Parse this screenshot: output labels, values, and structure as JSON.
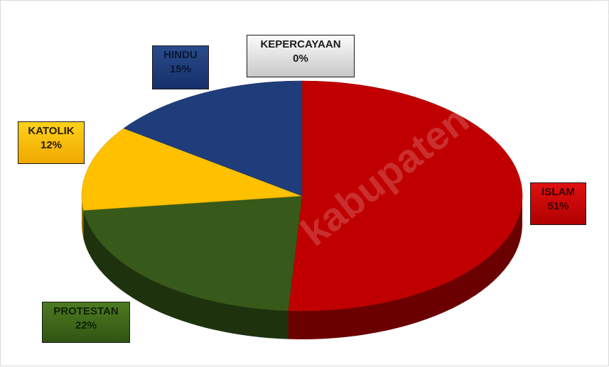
{
  "chart_data": {
    "type": "pie",
    "categories": [
      "ISLAM",
      "PROTESTAN",
      "KATOLIK",
      "HINDU",
      "KEPERCAYAAN"
    ],
    "values": [
      51,
      22,
      12,
      15,
      0
    ],
    "value_labels": [
      "51%",
      "22%",
      "12%",
      "15%",
      "0%"
    ],
    "colors": [
      "#c00000",
      "#375a1a",
      "#ffc000",
      "#1f3d7a",
      "#bfbfbf"
    ],
    "style": "3d"
  },
  "watermark": "kabupaten.bps.go.id"
}
